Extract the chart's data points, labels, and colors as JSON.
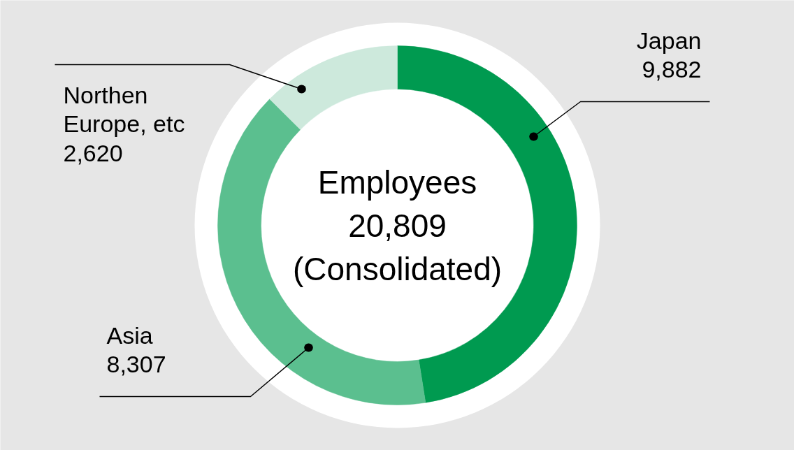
{
  "chart_data": {
    "type": "donut",
    "categories": [
      "Japan",
      "Asia",
      "Northen Europe, etc"
    ],
    "values": [
      9882,
      8307,
      2620
    ],
    "colors": [
      "#009a50",
      "#5bbf8f",
      "#cde9dc"
    ],
    "value_labels": [
      "9,882",
      "8,307",
      "2,620"
    ],
    "annotations": [
      "Employees",
      "20,809",
      "(Consolidated)"
    ]
  }
}
